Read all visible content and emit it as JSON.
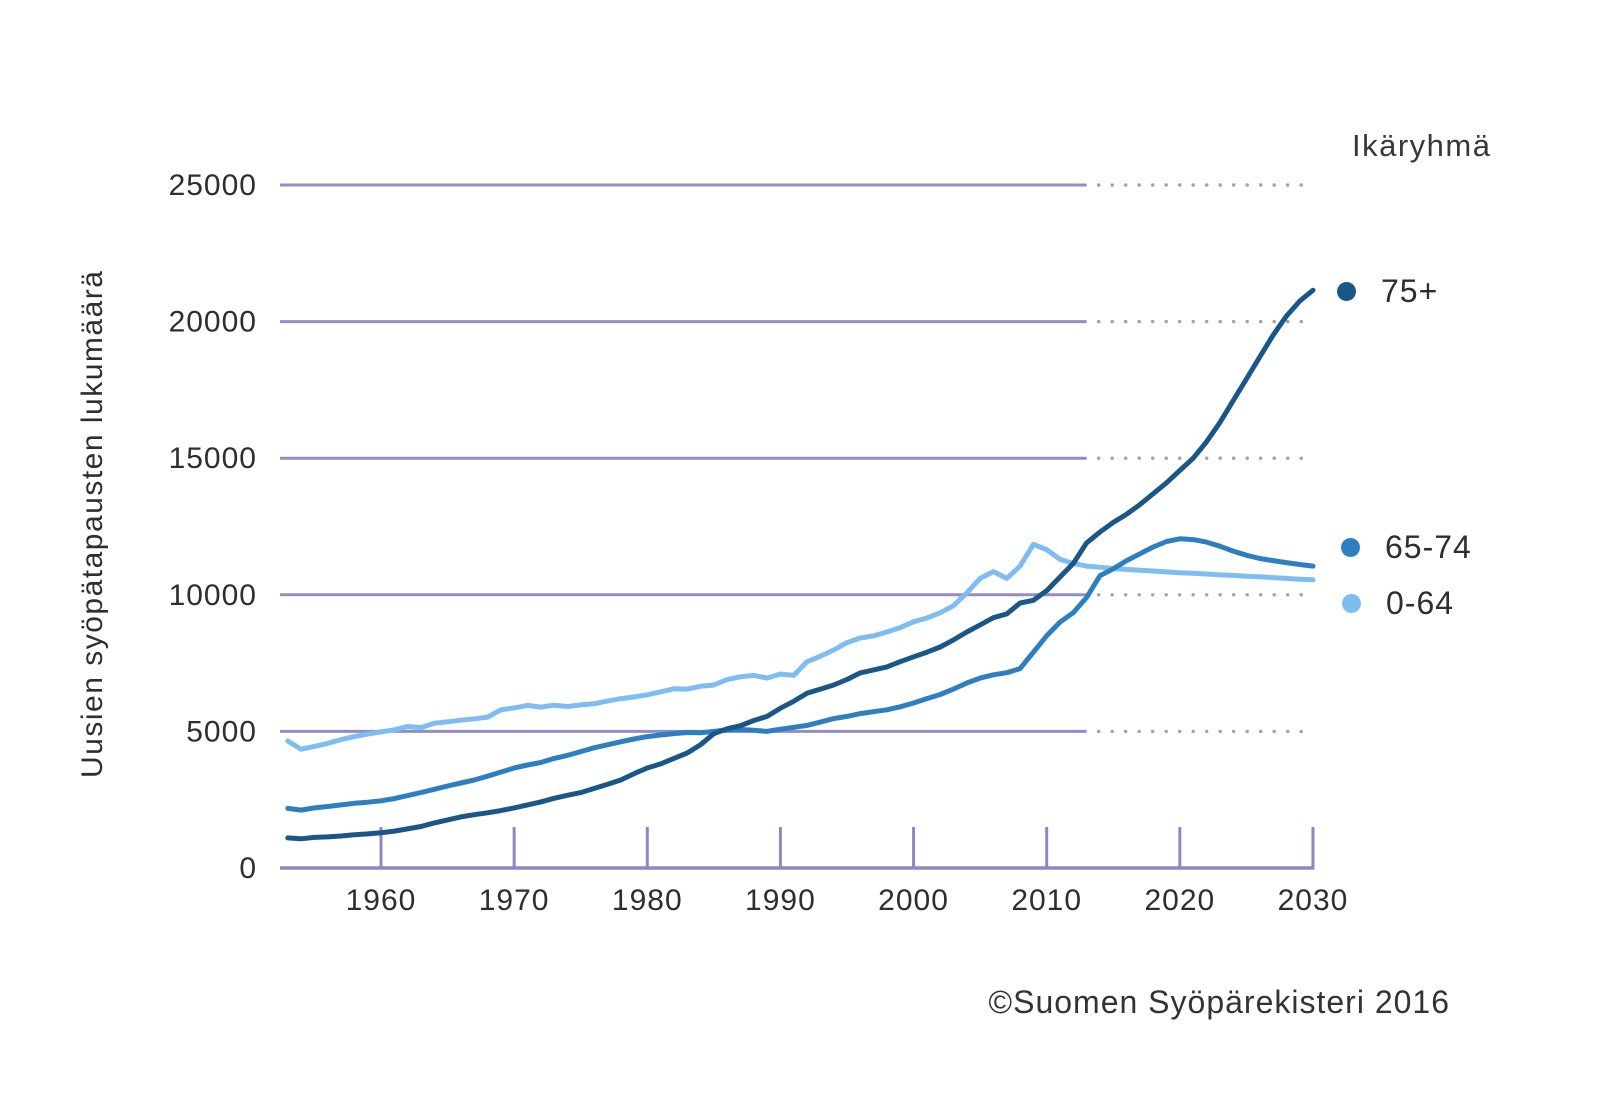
{
  "colors": {
    "background": "#ffffff",
    "axis": "#8c88c3",
    "gridline": "#928dc6",
    "gridline_forecast_dots": "#a3a3a3",
    "text": "#2e2e2e",
    "series_75plus": "#1b5786",
    "series_65_74": "#2e7fc2",
    "series_0_64": "#7ebdf1"
  },
  "y_axis": {
    "title": "Uusien syöpätapausten lukumäärä"
  },
  "legend": {
    "title": "Ikäryhmä",
    "items": [
      {
        "label": "75+",
        "color": "#1b5786"
      },
      {
        "label": "65-74",
        "color": "#2e7fc2"
      },
      {
        "label": "0-64",
        "color": "#7ebdf1"
      }
    ]
  },
  "attribution": "©Suomen Syöpärekisteri 2016",
  "chart_data": {
    "type": "line",
    "title": "",
    "xlabel": "",
    "ylabel": "Uusien syöpätapausten lukumäärä",
    "legend_title": "Ikäryhmä",
    "legend_position": "right",
    "xlim": [
      1953,
      2030
    ],
    "ylim": [
      0,
      25000
    ],
    "y_ticks": [
      0,
      5000,
      10000,
      15000,
      20000,
      25000
    ],
    "x_ticks": [
      1960,
      1970,
      1980,
      1990,
      2000,
      2010,
      2020,
      2030
    ],
    "grid": "horizontal gridlines: solid for observed years (to 2013), dotted for forecast years (2013-2030)",
    "forecast_from_year": 2013,
    "x": [
      1953,
      1954,
      1955,
      1956,
      1957,
      1958,
      1959,
      1960,
      1961,
      1962,
      1963,
      1964,
      1965,
      1966,
      1967,
      1968,
      1969,
      1970,
      1971,
      1972,
      1973,
      1974,
      1975,
      1976,
      1977,
      1978,
      1979,
      1980,
      1981,
      1982,
      1983,
      1984,
      1985,
      1986,
      1987,
      1988,
      1989,
      1990,
      1991,
      1992,
      1993,
      1994,
      1995,
      1996,
      1997,
      1998,
      1999,
      2000,
      2001,
      2002,
      2003,
      2004,
      2005,
      2006,
      2007,
      2008,
      2009,
      2010,
      2011,
      2012,
      2013,
      2014,
      2015,
      2016,
      2017,
      2018,
      2019,
      2020,
      2021,
      2022,
      2023,
      2024,
      2025,
      2026,
      2027,
      2028,
      2029,
      2030
    ],
    "series": [
      {
        "name": "75+",
        "color": "#1b5786",
        "values": [
          1100,
          1070,
          1120,
          1140,
          1170,
          1220,
          1250,
          1290,
          1350,
          1430,
          1520,
          1650,
          1760,
          1870,
          1950,
          2020,
          2100,
          2200,
          2310,
          2420,
          2550,
          2660,
          2760,
          2910,
          3060,
          3220,
          3450,
          3660,
          3810,
          4010,
          4210,
          4510,
          4920,
          5100,
          5210,
          5400,
          5550,
          5850,
          6100,
          6400,
          6550,
          6700,
          6900,
          7140,
          7250,
          7360,
          7550,
          7730,
          7900,
          8090,
          8350,
          8640,
          8900,
          9160,
          9300,
          9700,
          9800,
          10150,
          10650,
          11150,
          11900,
          12300,
          12650,
          12950,
          13300,
          13700,
          14100,
          14550,
          15000,
          15600,
          16300,
          17100,
          17900,
          18700,
          19500,
          20200,
          20750,
          21150
        ]
      },
      {
        "name": "65-74",
        "color": "#2e7fc2",
        "values": [
          2180,
          2120,
          2200,
          2250,
          2310,
          2370,
          2410,
          2460,
          2540,
          2650,
          2760,
          2880,
          3000,
          3110,
          3220,
          3360,
          3510,
          3660,
          3770,
          3860,
          4010,
          4120,
          4260,
          4400,
          4510,
          4620,
          4720,
          4810,
          4870,
          4920,
          4960,
          4950,
          5000,
          5050,
          5070,
          5040,
          5000,
          5080,
          5150,
          5220,
          5340,
          5470,
          5550,
          5650,
          5720,
          5790,
          5900,
          6040,
          6200,
          6350,
          6550,
          6770,
          6950,
          7070,
          7150,
          7300,
          7900,
          8500,
          9000,
          9350,
          9900,
          10700,
          10950,
          11250,
          11500,
          11750,
          11950,
          12050,
          12020,
          11930,
          11780,
          11600,
          11450,
          11330,
          11250,
          11180,
          11110,
          11050
        ]
      },
      {
        "name": "0-64",
        "color": "#7ebdf1",
        "values": [
          4650,
          4350,
          4450,
          4560,
          4700,
          4810,
          4900,
          4980,
          5060,
          5180,
          5140,
          5300,
          5350,
          5410,
          5460,
          5520,
          5790,
          5860,
          5950,
          5890,
          5960,
          5910,
          5970,
          6010,
          6110,
          6200,
          6260,
          6340,
          6450,
          6560,
          6550,
          6650,
          6700,
          6900,
          7000,
          7050,
          6950,
          7100,
          7050,
          7550,
          7750,
          7980,
          8250,
          8420,
          8500,
          8640,
          8800,
          9010,
          9150,
          9340,
          9600,
          10070,
          10600,
          10850,
          10600,
          11050,
          11850,
          11650,
          11300,
          11150,
          11050,
          11010,
          10960,
          10930,
          10900,
          10870,
          10840,
          10810,
          10790,
          10760,
          10730,
          10710,
          10680,
          10660,
          10630,
          10600,
          10570,
          10550
        ]
      }
    ]
  }
}
